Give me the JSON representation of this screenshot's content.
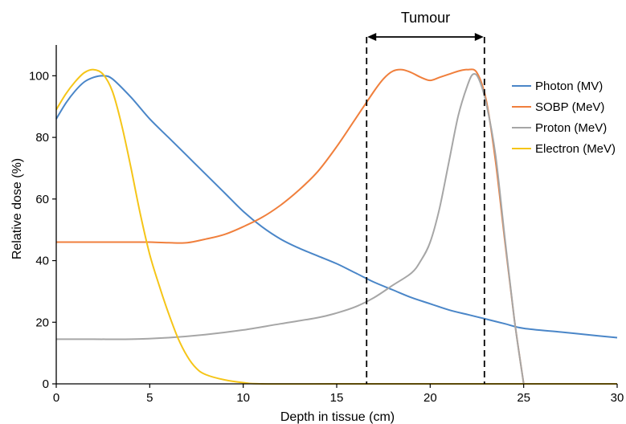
{
  "chart_data": {
    "type": "line",
    "xlabel": "Depth in tissue (cm)",
    "ylabel": "Relative dose (%)",
    "xlim": [
      0,
      30
    ],
    "ylim": [
      0,
      110
    ],
    "xticks": [
      0,
      5,
      10,
      15,
      20,
      25,
      30
    ],
    "yticks": [
      0,
      20,
      40,
      60,
      80,
      100
    ],
    "grid": false,
    "legend_position": "right",
    "annotation": {
      "label": "Tumour",
      "region": [
        16.6,
        22.9
      ]
    },
    "series": [
      {
        "name": "Photon (MV)",
        "color": "#4a86c8",
        "points": [
          [
            0,
            86
          ],
          [
            0.5,
            91
          ],
          [
            1,
            95
          ],
          [
            1.5,
            98
          ],
          [
            2,
            99.5
          ],
          [
            2.5,
            100
          ],
          [
            3,
            99
          ],
          [
            4,
            93
          ],
          [
            5,
            86
          ],
          [
            6,
            80
          ],
          [
            7,
            74
          ],
          [
            8,
            68
          ],
          [
            9,
            62
          ],
          [
            10,
            56
          ],
          [
            11,
            51
          ],
          [
            12,
            47
          ],
          [
            13,
            44
          ],
          [
            14,
            41.5
          ],
          [
            15,
            39
          ],
          [
            16,
            36
          ],
          [
            17,
            33
          ],
          [
            18,
            30.5
          ],
          [
            19,
            28
          ],
          [
            20,
            26
          ],
          [
            21,
            24
          ],
          [
            22,
            22.5
          ],
          [
            23,
            21
          ],
          [
            24,
            19.5
          ],
          [
            25,
            18
          ],
          [
            27,
            16.8
          ],
          [
            29,
            15.6
          ],
          [
            30,
            15
          ]
        ]
      },
      {
        "name": "SOBP (MeV)",
        "color": "#f07f3c",
        "points": [
          [
            0,
            46
          ],
          [
            2,
            46
          ],
          [
            4,
            46
          ],
          [
            5,
            46
          ],
          [
            6,
            45.8
          ],
          [
            7,
            45.8
          ],
          [
            8,
            47
          ],
          [
            9,
            48.5
          ],
          [
            10,
            51
          ],
          [
            11,
            54
          ],
          [
            12,
            58
          ],
          [
            13,
            63
          ],
          [
            14,
            69
          ],
          [
            15,
            77
          ],
          [
            16,
            86
          ],
          [
            17,
            95
          ],
          [
            17.5,
            99
          ],
          [
            18,
            101.5
          ],
          [
            18.5,
            102
          ],
          [
            19,
            101
          ],
          [
            19.5,
            99.5
          ],
          [
            20,
            98.5
          ],
          [
            20.5,
            99.5
          ],
          [
            21,
            100.5
          ],
          [
            21.5,
            101.5
          ],
          [
            22,
            102
          ],
          [
            22.5,
            101
          ],
          [
            23,
            92
          ],
          [
            23.5,
            72
          ],
          [
            24,
            46
          ],
          [
            24.5,
            21
          ],
          [
            25,
            0
          ]
        ]
      },
      {
        "name": "Proton (MeV)",
        "color": "#a6a6a6",
        "points": [
          [
            0,
            14.5
          ],
          [
            2,
            14.5
          ],
          [
            4,
            14.5
          ],
          [
            6,
            15
          ],
          [
            8,
            16
          ],
          [
            10,
            17.5
          ],
          [
            12,
            19.5
          ],
          [
            14,
            21.5
          ],
          [
            15,
            23
          ],
          [
            16,
            25
          ],
          [
            17,
            28
          ],
          [
            18,
            32
          ],
          [
            19,
            36
          ],
          [
            19.5,
            40
          ],
          [
            20,
            46
          ],
          [
            20.5,
            57
          ],
          [
            21,
            72
          ],
          [
            21.5,
            87
          ],
          [
            22,
            97
          ],
          [
            22.3,
            100.5
          ],
          [
            22.6,
            99
          ],
          [
            23,
            91
          ],
          [
            23.5,
            74
          ],
          [
            24,
            47
          ],
          [
            24.5,
            21
          ],
          [
            25,
            0
          ]
        ]
      },
      {
        "name": "Electron (MeV)",
        "color": "#f5c518",
        "points": [
          [
            0,
            89
          ],
          [
            0.5,
            94
          ],
          [
            1,
            98
          ],
          [
            1.5,
            101
          ],
          [
            2,
            102
          ],
          [
            2.5,
            100.5
          ],
          [
            3,
            95
          ],
          [
            3.5,
            84
          ],
          [
            4,
            70
          ],
          [
            4.5,
            55
          ],
          [
            5,
            42
          ],
          [
            5.5,
            32
          ],
          [
            6,
            23
          ],
          [
            6.5,
            15
          ],
          [
            7,
            9
          ],
          [
            7.5,
            5
          ],
          [
            8,
            3
          ],
          [
            9,
            1.3
          ],
          [
            10,
            0.4
          ],
          [
            11,
            0
          ],
          [
            15,
            0
          ],
          [
            20,
            0
          ],
          [
            25,
            0
          ],
          [
            30,
            0
          ]
        ]
      }
    ]
  }
}
